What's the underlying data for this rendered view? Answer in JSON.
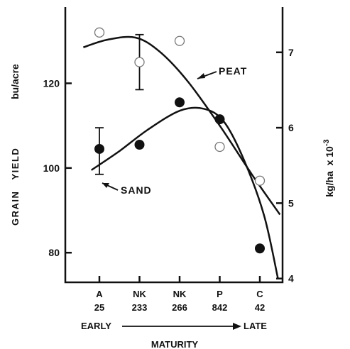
{
  "chart_data": {
    "type": "scatter",
    "title": "",
    "categories": [
      {
        "line1": "A",
        "line2": "25"
      },
      {
        "line1": "NK",
        "line2": "233"
      },
      {
        "line1": "NK",
        "line2": "266"
      },
      {
        "line1": "P",
        "line2": "842"
      },
      {
        "line1": "C",
        "line2": "42"
      }
    ],
    "xlabel": "MATURITY",
    "x_start_label": "EARLY",
    "x_end_label": "LATE",
    "ylabel_left_main": "GRAIN   YIELD",
    "ylabel_left_unit": "bu/acre",
    "ylabel_right": "kg/ha  x 10",
    "ylabel_right_exp": "-3",
    "ylim": [
      73,
      138
    ],
    "yticks_left": [
      80,
      100,
      120
    ],
    "ylim_right": [
      3.95,
      7.6
    ],
    "yticks_right": [
      4,
      5,
      6,
      7
    ],
    "series": [
      {
        "name": "PEAT",
        "marker": "open-circle",
        "points": [
          {
            "x": 0,
            "y": 132
          },
          {
            "x": 1,
            "y": 125
          },
          {
            "x": 2,
            "y": 130
          },
          {
            "x": 3,
            "y": 105
          },
          {
            "x": 4,
            "y": 97
          }
        ],
        "error_bar": {
          "x": 1,
          "low": 118.5,
          "high": 131.5
        },
        "curve": [
          {
            "x": -0.4,
            "y": 128.5
          },
          {
            "x": 0.2,
            "y": 130.3
          },
          {
            "x": 0.9,
            "y": 130.8
          },
          {
            "x": 1.5,
            "y": 127.5
          },
          {
            "x": 2.2,
            "y": 120.5
          },
          {
            "x": 3.0,
            "y": 110
          },
          {
            "x": 3.8,
            "y": 98.5
          },
          {
            "x": 4.5,
            "y": 89
          }
        ]
      },
      {
        "name": "SAND",
        "marker": "filled-circle",
        "points": [
          {
            "x": 0,
            "y": 104.5
          },
          {
            "x": 1,
            "y": 105.5
          },
          {
            "x": 2,
            "y": 115.5
          },
          {
            "x": 3,
            "y": 111.5
          },
          {
            "x": 4,
            "y": 81
          }
        ],
        "error_bar": {
          "x": 0,
          "low": 98.5,
          "high": 109.5
        },
        "curve": [
          {
            "x": -0.2,
            "y": 99.5
          },
          {
            "x": 0.5,
            "y": 104
          },
          {
            "x": 1.2,
            "y": 109
          },
          {
            "x": 2.0,
            "y": 113.5
          },
          {
            "x": 2.6,
            "y": 114
          },
          {
            "x": 3.1,
            "y": 111
          },
          {
            "x": 3.6,
            "y": 102
          },
          {
            "x": 4.1,
            "y": 89
          },
          {
            "x": 4.45,
            "y": 74
          }
        ]
      }
    ]
  }
}
